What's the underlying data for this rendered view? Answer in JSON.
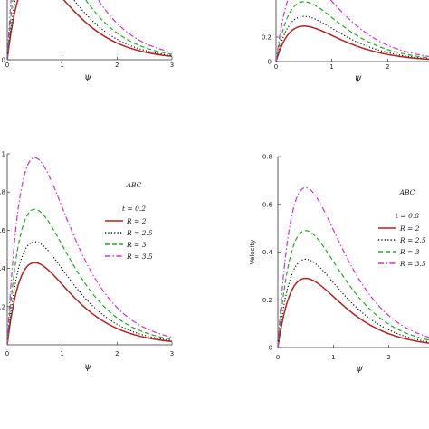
{
  "chart_data": [
    {
      "type": "line",
      "panel": "top-left",
      "xlabel": "ψ",
      "ylabel": "",
      "xlim": [
        0,
        3
      ],
      "x_ticks": [
        "0",
        "1",
        "2",
        "3"
      ],
      "y_ticks": [
        "0"
      ],
      "title": "",
      "annotation": "",
      "param_label": "",
      "series": [
        {
          "color": "#b22222",
          "dash": "solid",
          "peak": 0.45,
          "peak_x": 0.5
        },
        {
          "color": "#111111",
          "dash": "dotted",
          "peak": 0.55,
          "peak_x": 0.5
        },
        {
          "color": "#22aa22",
          "dash": "dashed",
          "peak": 0.72,
          "peak_x": 0.5
        },
        {
          "color": "#cc33cc",
          "dash": "dashdot",
          "peak": 0.98,
          "peak_x": 0.5
        }
      ],
      "legend": [],
      "legend_position": "none"
    },
    {
      "type": "line",
      "panel": "top-right",
      "xlabel": "ψ",
      "ylabel": "",
      "xlim": [
        0,
        3
      ],
      "x_ticks": [
        "0",
        "1",
        "2"
      ],
      "y_ticks": [
        "0",
        "0.2"
      ],
      "title": "",
      "annotation": "",
      "param_label": "",
      "series": [
        {
          "color": "#b22222",
          "dash": "solid",
          "peak": 0.29,
          "peak_x": 0.5
        },
        {
          "color": "#111111",
          "dash": "dotted",
          "peak": 0.37,
          "peak_x": 0.5
        },
        {
          "color": "#22aa22",
          "dash": "dashed",
          "peak": 0.49,
          "peak_x": 0.5
        },
        {
          "color": "#cc33cc",
          "dash": "dashdot",
          "peak": 0.67,
          "peak_x": 0.5
        }
      ],
      "legend": [],
      "legend_position": "none"
    },
    {
      "type": "line",
      "panel": "bottom-left",
      "xlabel": "ψ",
      "ylabel": "",
      "xlim": [
        0,
        3
      ],
      "ylim": [
        0,
        1
      ],
      "x_ticks": [
        "0",
        "1",
        "2",
        "3"
      ],
      "y_ticks": [
        "1",
        ".8",
        ".6",
        ".4",
        ".2"
      ],
      "annotation": "ABC",
      "param_label": "t = 0.2",
      "series": [
        {
          "name": "R = 2",
          "color": "#b22222",
          "dash": "solid",
          "peak": 0.43,
          "peak_x": 0.5
        },
        {
          "name": "R = 2.5",
          "color": "#111111",
          "dash": "dotted",
          "peak": 0.54,
          "peak_x": 0.5
        },
        {
          "name": "R = 3",
          "color": "#22aa22",
          "dash": "dashed",
          "peak": 0.71,
          "peak_x": 0.5
        },
        {
          "name": "R = 3.5",
          "color": "#cc33cc",
          "dash": "dashdot",
          "peak": 0.98,
          "peak_x": 0.5
        }
      ],
      "legend": [
        "R = 2",
        "R = 2.5",
        "R = 3",
        "R = 3.5"
      ],
      "legend_position": "right"
    },
    {
      "type": "line",
      "panel": "bottom-right",
      "xlabel": "ψ",
      "ylabel": "Velocity",
      "xlim": [
        0,
        3
      ],
      "ylim": [
        0,
        0.8
      ],
      "x_ticks": [
        "0",
        "1",
        "2"
      ],
      "y_ticks": [
        "0.8",
        "0.6",
        "0.4",
        "0.2",
        "0"
      ],
      "annotation": "ABC",
      "param_label": "t = 0.8",
      "series": [
        {
          "name": "R = 2",
          "color": "#b22222",
          "dash": "solid",
          "peak": 0.29,
          "peak_x": 0.5
        },
        {
          "name": "R = 2.5",
          "color": "#111111",
          "dash": "dotted",
          "peak": 0.37,
          "peak_x": 0.5
        },
        {
          "name": "R = 3",
          "color": "#22aa22",
          "dash": "dashed",
          "peak": 0.49,
          "peak_x": 0.5
        },
        {
          "name": "R = 3.5",
          "color": "#cc33cc",
          "dash": "dashdot",
          "peak": 0.67,
          "peak_x": 0.5
        }
      ],
      "legend": [
        "R = 2",
        "R = 2.5",
        "R = 3",
        "R = 3.5"
      ],
      "legend_position": "right"
    }
  ]
}
